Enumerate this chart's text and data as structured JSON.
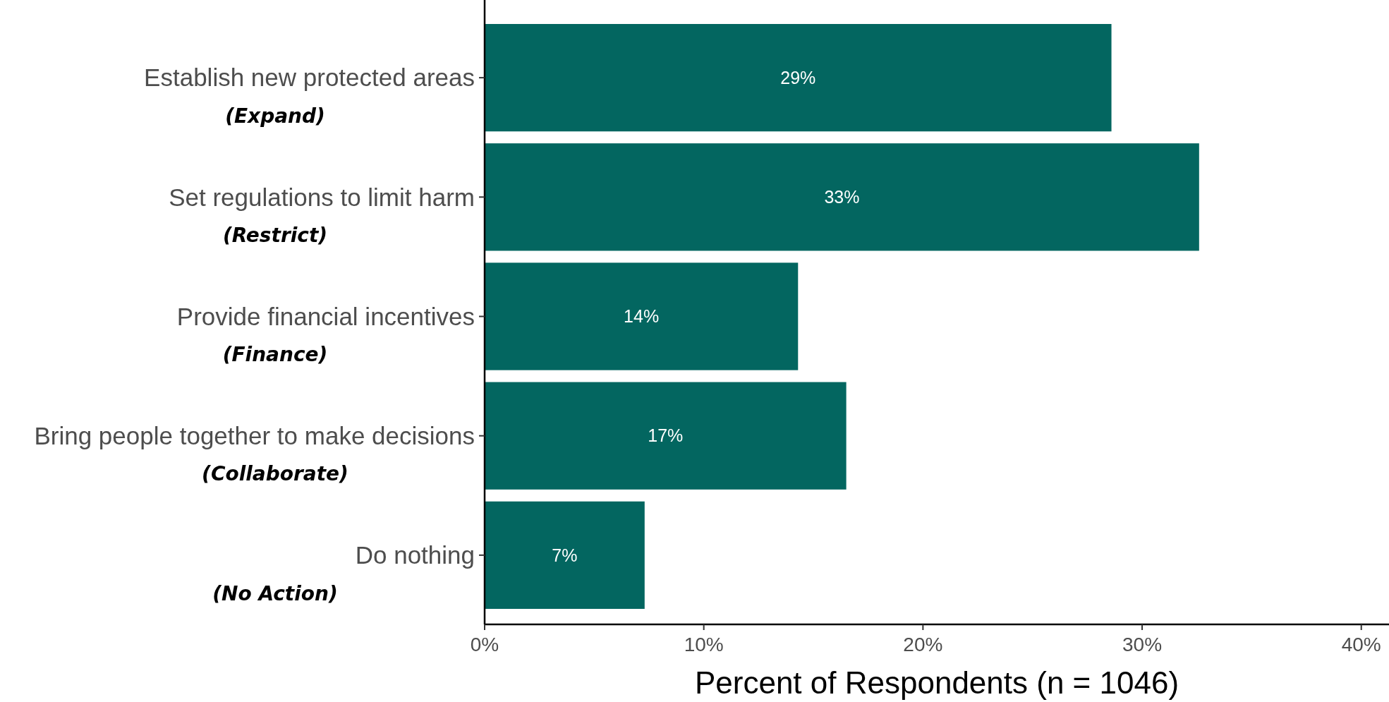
{
  "chart_data": {
    "type": "bar",
    "orientation": "horizontal",
    "xlabel": "Percent of Respondents (n = 1046)",
    "categories": [
      "Establish new protected areas\n(Expand)",
      "Set regulations to limit harm\n(Restrict)",
      "Provide financial incentives\n(Finance)",
      "Bring people together to make decisions\n(Collaborate)",
      "Do nothing\n(No Action)"
    ],
    "values": [
      28.6,
      32.6,
      14.3,
      16.5,
      7.3
    ],
    "value_labels": [
      "29%",
      "33%",
      "14%",
      "17%",
      "7%"
    ],
    "color": "#036660",
    "xlim": [
      0,
      41.2
    ],
    "xticks": [
      {
        "value": 0,
        "label": "0%"
      },
      {
        "value": 10,
        "label": "10%"
      },
      {
        "value": 20,
        "label": "20%"
      },
      {
        "value": 30,
        "label": "30%"
      },
      {
        "value": 40,
        "label": "40%"
      }
    ],
    "grid": false
  }
}
